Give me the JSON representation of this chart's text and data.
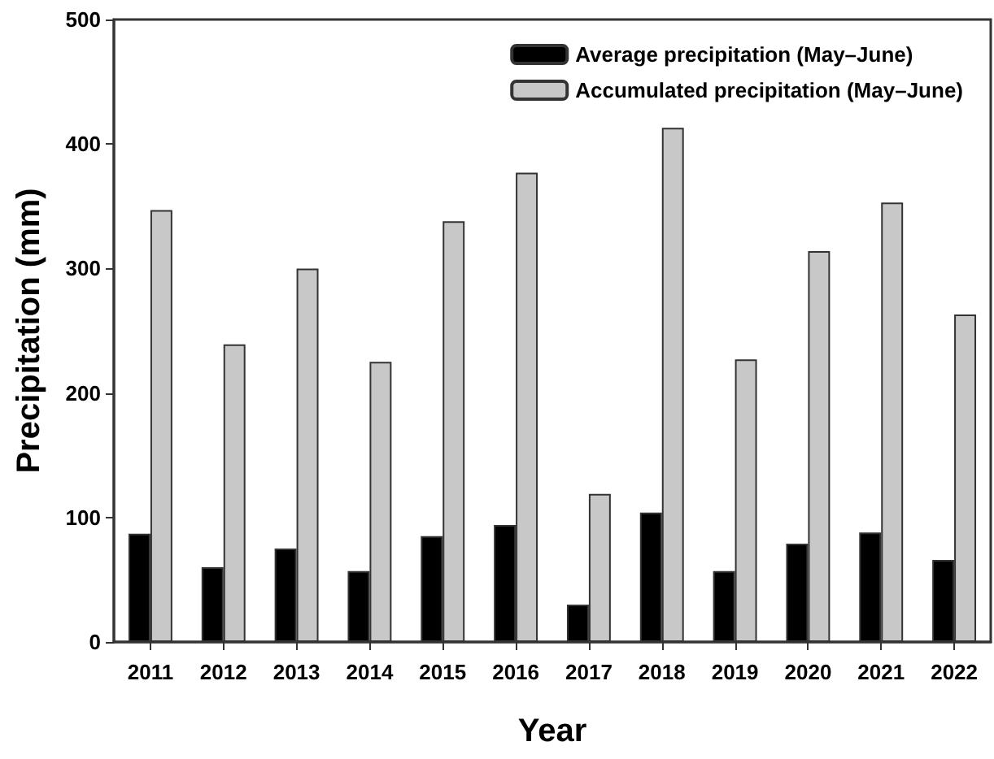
{
  "chart_data": {
    "type": "bar",
    "xlabel": "Year",
    "ylabel": "Precipitation (mm)",
    "categories": [
      "2011",
      "2012",
      "2013",
      "2014",
      "2015",
      "2016",
      "2017",
      "2018",
      "2019",
      "2020",
      "2021",
      "2022"
    ],
    "series": [
      {
        "name": "Average precipitation (May–June)",
        "color": "#000000",
        "values": [
          87,
          60,
          75,
          57,
          85,
          94,
          30,
          104,
          57,
          79,
          88,
          66
        ]
      },
      {
        "name": "Accumulated precipitation (May–June)",
        "color": "#c8c8c8",
        "values": [
          347,
          239,
          300,
          225,
          338,
          377,
          119,
          413,
          227,
          314,
          353,
          263
        ]
      }
    ],
    "ylim": [
      0,
      500
    ],
    "yticks": [
      0,
      100,
      200,
      300,
      400,
      500
    ],
    "grid": false,
    "legend": "top right"
  }
}
